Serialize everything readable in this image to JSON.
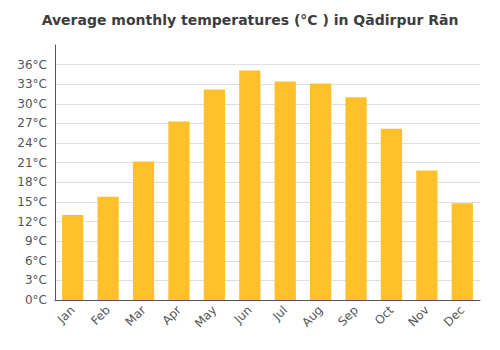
{
  "chart_data": {
    "type": "bar",
    "title": "Average monthly temperatures (°C ) in Qādirpur Rān",
    "categories": [
      "Jan",
      "Feb",
      "Mar",
      "Apr",
      "May",
      "Jun",
      "Jul",
      "Aug",
      "Sep",
      "Oct",
      "Nov",
      "Dec"
    ],
    "values": [
      13.0,
      15.8,
      21.2,
      27.3,
      32.2,
      35.1,
      33.4,
      33.1,
      31.0,
      26.2,
      19.8,
      14.8
    ],
    "color": "#FFC02A",
    "ylim": [
      0,
      39
    ],
    "yticks": [
      {
        "value": 0,
        "label": "0°C"
      },
      {
        "value": 3,
        "label": "3°C"
      },
      {
        "value": 6,
        "label": "6°C"
      },
      {
        "value": 9,
        "label": "9°C"
      },
      {
        "value": 12,
        "label": "12°C"
      },
      {
        "value": 15,
        "label": "15°C"
      },
      {
        "value": 18,
        "label": "18°C"
      },
      {
        "value": 21,
        "label": "21°C"
      },
      {
        "value": 24,
        "label": "24°C"
      },
      {
        "value": 27,
        "label": "27°C"
      },
      {
        "value": 30,
        "label": "30°C"
      },
      {
        "value": 33,
        "label": "33°C"
      },
      {
        "value": 36,
        "label": "36°C"
      }
    ],
    "grid": true
  }
}
